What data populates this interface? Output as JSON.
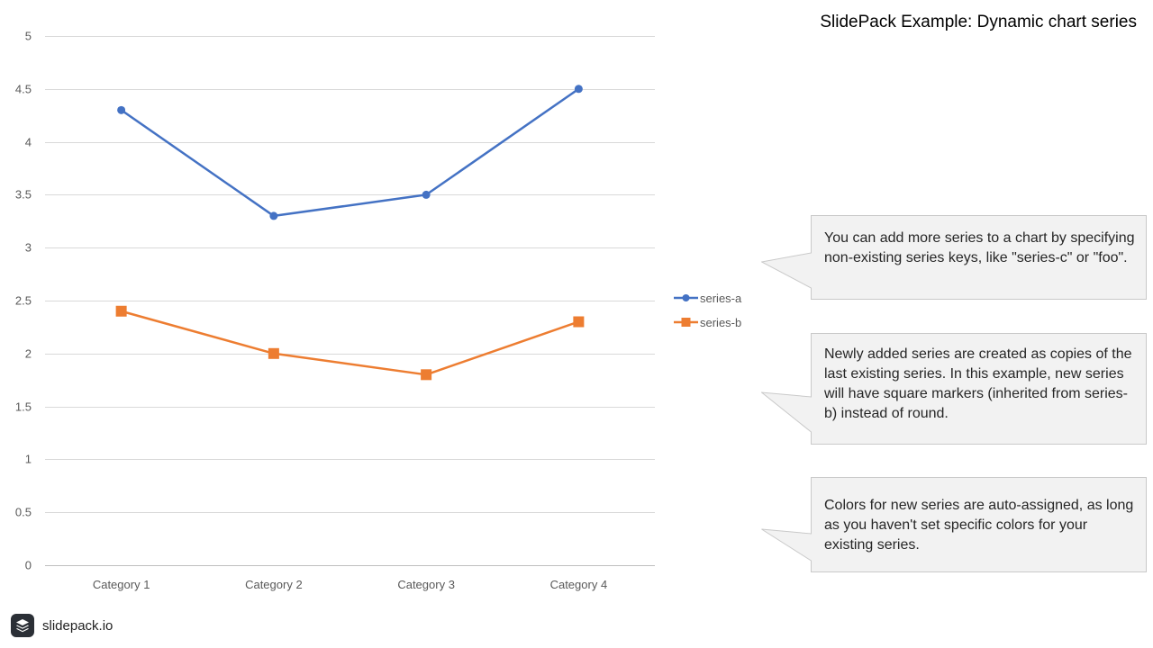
{
  "slide": {
    "title": "SlidePack Example: Dynamic chart series",
    "brand": "slidepack.io"
  },
  "callouts": [
    {
      "text": "You can add more series to a chart by specifying non-existing series keys, like \"series-c\" or \"foo\"."
    },
    {
      "text": "Newly added series are created as copies of the last existing series. In this example, new series will have square markers (inherited from series-b) instead of round."
    },
    {
      "text": "Colors for new series are auto-assigned, as long as you haven't set specific colors for your existing series."
    }
  ],
  "chart_data": {
    "type": "line",
    "categories": [
      "Category 1",
      "Category 2",
      "Category 3",
      "Category 4"
    ],
    "series": [
      {
        "name": "series-a",
        "values": [
          4.3,
          3.3,
          3.5,
          4.5
        ],
        "color": "#4472C4",
        "marker": "circle"
      },
      {
        "name": "series-b",
        "values": [
          2.4,
          2.0,
          1.8,
          2.3
        ],
        "color": "#ED7D31",
        "marker": "square"
      }
    ],
    "ylim": [
      0,
      5
    ],
    "yticks": [
      0,
      0.5,
      1,
      1.5,
      2,
      2.5,
      3,
      3.5,
      4,
      4.5,
      5
    ],
    "grid": true,
    "legend": "right"
  }
}
